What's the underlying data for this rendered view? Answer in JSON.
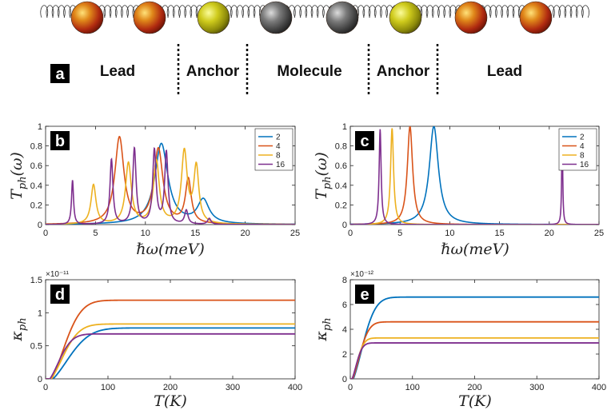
{
  "chain": {
    "atom_colors": [
      "#b83a14",
      "#b83a14",
      "#a8a512",
      "#5a5a5a",
      "#5a5a5a",
      "#a8a512",
      "#b83a14",
      "#b83a14"
    ],
    "panel_letter": "a",
    "regions": [
      "Lead",
      "Anchor",
      "Molecule",
      "Anchor",
      "Lead"
    ]
  },
  "legend_colors": [
    "#0072bd",
    "#d95319",
    "#edb120",
    "#7e2f8e"
  ],
  "chart_data": [
    {
      "id": "b",
      "panel_letter": "b",
      "type": "line",
      "xlim": [
        0,
        25
      ],
      "ylim": [
        0,
        1
      ],
      "xticks": [
        "0",
        "5",
        "10",
        "15",
        "20",
        "25"
      ],
      "yticks": [
        "0",
        "0.2",
        "0.4",
        "0.6",
        "0.8",
        "1"
      ],
      "xlabel": "ℏω(meV)",
      "ylabel_main": "T",
      "ylabel_sub": "ph",
      "ylabel_tail": "(ω)",
      "legend_position": "top-right",
      "series": [
        {
          "name": "2",
          "peaks": [
            [
              11.6,
              0.82,
              0.8
            ],
            [
              15.8,
              0.24,
              0.7
            ]
          ]
        },
        {
          "name": "4",
          "peaks": [
            [
              7.4,
              0.88,
              0.55
            ],
            [
              11.3,
              0.76,
              0.55
            ],
            [
              14.3,
              0.45,
              0.35
            ]
          ]
        },
        {
          "name": "8",
          "peaks": [
            [
              4.8,
              0.4,
              0.3
            ],
            [
              8.3,
              0.62,
              0.35
            ],
            [
              11.1,
              0.64,
              0.35
            ],
            [
              13.9,
              0.73,
              0.35
            ],
            [
              15.1,
              0.57,
              0.3
            ]
          ]
        },
        {
          "name": "16",
          "peaks": [
            [
              2.7,
              0.45,
              0.12
            ],
            [
              6.6,
              0.66,
              0.18
            ],
            [
              8.9,
              0.77,
              0.2
            ],
            [
              10.9,
              0.75,
              0.2
            ],
            [
              12.1,
              0.73,
              0.2
            ],
            [
              14.1,
              0.14,
              0.2
            ],
            [
              16.4,
              0.06,
              0.2
            ]
          ]
        }
      ]
    },
    {
      "id": "c",
      "panel_letter": "c",
      "type": "line",
      "xlim": [
        0,
        25
      ],
      "ylim": [
        0,
        1
      ],
      "xticks": [
        "0",
        "5",
        "10",
        "15",
        "20",
        "25"
      ],
      "yticks": [
        "0",
        "0.2",
        "0.4",
        "0.6",
        "0.8",
        "1"
      ],
      "xlabel": "ℏω(meV)",
      "ylabel_main": "T",
      "ylabel_sub": "ph",
      "ylabel_tail": "(ω)",
      "legend_position": "top-right",
      "series": [
        {
          "name": "2",
          "peaks": [
            [
              8.4,
              1.0,
              0.55
            ]
          ]
        },
        {
          "name": "4",
          "peaks": [
            [
              6.0,
              1.0,
              0.32
            ]
          ]
        },
        {
          "name": "8",
          "peaks": [
            [
              4.2,
              0.98,
              0.18
            ]
          ]
        },
        {
          "name": "16",
          "peaks": [
            [
              3.0,
              0.97,
              0.12
            ],
            [
              21.3,
              0.98,
              0.06
            ]
          ]
        }
      ]
    },
    {
      "id": "d",
      "panel_letter": "d",
      "type": "line",
      "xlim": [
        0,
        400
      ],
      "ylim": [
        0,
        1.5
      ],
      "xticks": [
        "0",
        "100",
        "200",
        "300",
        "400"
      ],
      "yticks": [
        "0",
        "0.5",
        "1",
        "1.5"
      ],
      "exponent": "×10⁻¹¹",
      "xlabel": "T(K)",
      "ylabel_main": "κ",
      "ylabel_sub": "ph",
      "series": [
        {
          "name": "2",
          "sat": 0.77,
          "tau": 50,
          "t0": 12
        },
        {
          "name": "4",
          "sat": 1.19,
          "tau": 40,
          "t0": 10
        },
        {
          "name": "8",
          "sat": 0.83,
          "tau": 38,
          "t0": 9
        },
        {
          "name": "16",
          "sat": 0.68,
          "tau": 30,
          "t0": 7
        }
      ]
    },
    {
      "id": "e",
      "panel_letter": "e",
      "type": "line",
      "xlim": [
        0,
        400
      ],
      "ylim": [
        0,
        8
      ],
      "xticks": [
        "0",
        "100",
        "200",
        "300",
        "400"
      ],
      "yticks": [
        "0",
        "2",
        "4",
        "6",
        "8"
      ],
      "exponent": "×10⁻¹²",
      "xlabel": "T(K)",
      "ylabel_main": "κ",
      "ylabel_sub": "ph",
      "series": [
        {
          "name": "2",
          "sat": 6.6,
          "tau": 30,
          "t0": 5
        },
        {
          "name": "4",
          "sat": 4.6,
          "tau": 22,
          "t0": 4
        },
        {
          "name": "8",
          "sat": 3.3,
          "tau": 16,
          "t0": 3
        },
        {
          "name": "16",
          "sat": 2.9,
          "tau": 14,
          "t0": 3
        }
      ]
    }
  ]
}
